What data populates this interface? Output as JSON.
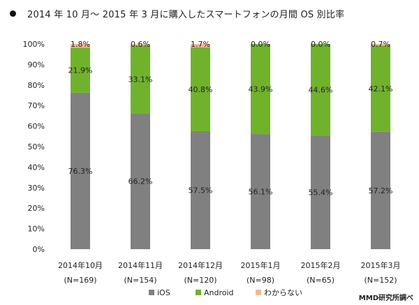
{
  "chart_data": {
    "type": "bar",
    "stacked": true,
    "title": "2014 年 10 月～ 2015 年 3 月に購入したスマートフォンの月間 OS 別比率",
    "categories": [
      "2014年10月",
      "2014年11月",
      "2014年12月",
      "2015年1月",
      "2015年2月",
      "2015年3月"
    ],
    "sample_sizes": [
      "(N=169)",
      "(N=154)",
      "(N=120)",
      "(N=98)",
      "(N=65)",
      "(N=152)"
    ],
    "series": [
      {
        "name": "iOS",
        "color": "#808080",
        "values": [
          76.3,
          66.2,
          57.5,
          56.1,
          55.4,
          57.2
        ],
        "labels": [
          "76.3%",
          "66.2%",
          "57.5%",
          "56.1%",
          "55.4%",
          "57.2%"
        ]
      },
      {
        "name": "Android",
        "color": "#70b22c",
        "values": [
          21.9,
          33.1,
          40.8,
          43.9,
          44.6,
          42.1
        ],
        "labels": [
          "21.9%",
          "33.1%",
          "40.8%",
          "43.9%",
          "44.6%",
          "42.1%"
        ]
      },
      {
        "name": "わからない",
        "color": "#f2b98f",
        "values": [
          1.8,
          0.6,
          1.7,
          0.0,
          0.0,
          0.7
        ],
        "labels": [
          "1.8%",
          "0.6%",
          "1.7%",
          "0.0%",
          "0.0%",
          "0.7%"
        ]
      }
    ],
    "yticks": [
      "0%",
      "10%",
      "20%",
      "30%",
      "40%",
      "50%",
      "60%",
      "70%",
      "80%",
      "90%",
      "100%"
    ],
    "ylim": [
      0,
      100
    ],
    "grid": false,
    "legend": "bottom"
  },
  "credit": "MMD研究所調べ"
}
